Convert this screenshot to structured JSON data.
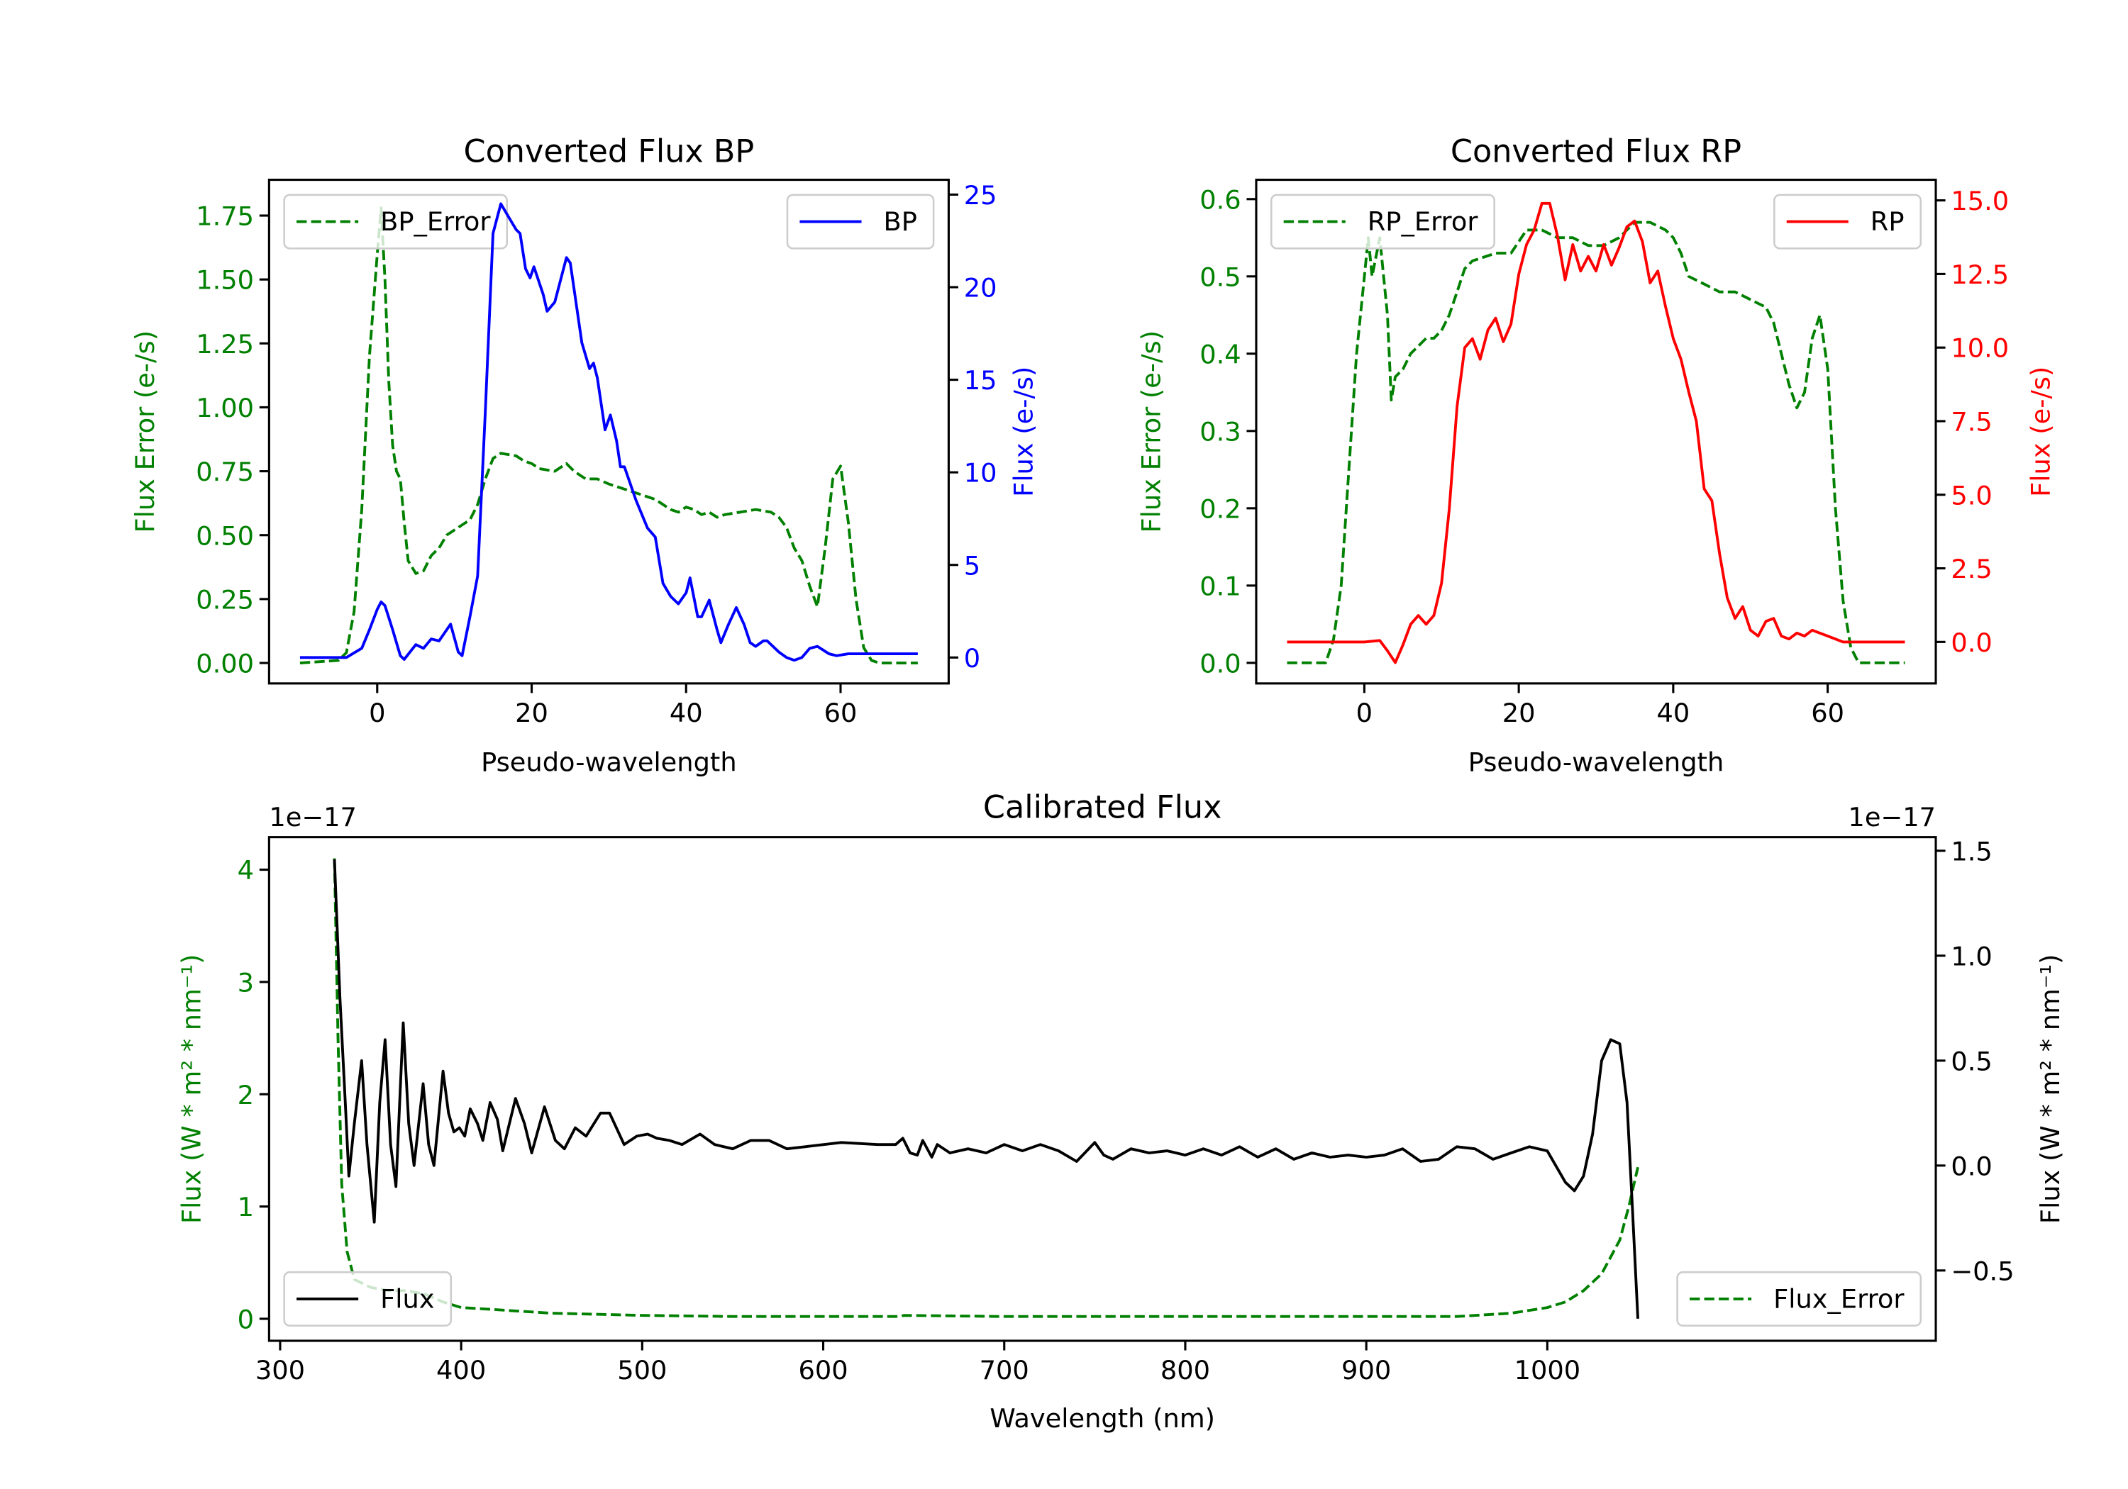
{
  "colors": {
    "error": "#008000",
    "bp": "#0000ff",
    "rp": "#ff0000",
    "flux": "#000000"
  },
  "chart_data": [
    {
      "id": "bp",
      "type": "line",
      "title": "Converted Flux BP",
      "xlabel": "Pseudo-wavelength",
      "xlim": [
        -14,
        74
      ],
      "xticks": [
        0,
        20,
        40,
        60
      ],
      "xtick_labels": [
        "0",
        "20",
        "40",
        "60"
      ],
      "left": {
        "label": "Flux Error (e-/s)",
        "color": "#008000",
        "ylim": [
          -0.08,
          1.89
        ],
        "ticks": [
          0,
          0.25,
          0.5,
          0.75,
          1.0,
          1.25,
          1.5,
          1.75
        ],
        "tick_labels": [
          "0.00",
          "0.25",
          "0.50",
          "0.75",
          "1.00",
          "1.25",
          "1.50",
          "1.75"
        ]
      },
      "right": {
        "label": "Flux (e-/s)",
        "color": "#0000ff",
        "ylim": [
          -1.4,
          25.8
        ],
        "ticks": [
          0,
          5,
          10,
          15,
          20,
          25
        ],
        "tick_labels": [
          "0",
          "5",
          "10",
          "15",
          "20",
          "25"
        ]
      },
      "series": [
        {
          "name": "BP_Error",
          "axis": "left",
          "color": "#008000",
          "style": "dashed",
          "legend": "upper left",
          "x": [
            -10,
            -5,
            -4,
            -3,
            -2,
            -1,
            0,
            0.5,
            1,
            1.5,
            2,
            2.5,
            3,
            3.5,
            4,
            5,
            6,
            7,
            8,
            9,
            10,
            11,
            12,
            13,
            14,
            15,
            16,
            18,
            19,
            20,
            21,
            23,
            24.5,
            25.5,
            27,
            28.5,
            30,
            32,
            34,
            36,
            37,
            38,
            39,
            40,
            41,
            42,
            43,
            44,
            45,
            47,
            49,
            51,
            52,
            53,
            54,
            55,
            56,
            57,
            58,
            59,
            60,
            61,
            62,
            63,
            64,
            65,
            70
          ],
          "y": [
            0,
            0.01,
            0.04,
            0.2,
            0.6,
            1.2,
            1.6,
            1.78,
            1.5,
            1.1,
            0.85,
            0.75,
            0.72,
            0.55,
            0.4,
            0.35,
            0.36,
            0.42,
            0.45,
            0.5,
            0.52,
            0.54,
            0.56,
            0.62,
            0.72,
            0.8,
            0.82,
            0.81,
            0.79,
            0.78,
            0.76,
            0.75,
            0.78,
            0.75,
            0.72,
            0.72,
            0.7,
            0.68,
            0.66,
            0.64,
            0.62,
            0.6,
            0.59,
            0.61,
            0.6,
            0.58,
            0.59,
            0.57,
            0.58,
            0.59,
            0.6,
            0.59,
            0.57,
            0.53,
            0.45,
            0.4,
            0.3,
            0.22,
            0.45,
            0.72,
            0.77,
            0.55,
            0.25,
            0.06,
            0.01,
            0,
            0
          ]
        },
        {
          "name": "BP",
          "axis": "right",
          "color": "#0000ff",
          "style": "solid",
          "legend": "upper right",
          "x": [
            -10,
            -4,
            -2,
            -1,
            0,
            0.5,
            1,
            2,
            3,
            3.5,
            5,
            6,
            7,
            8,
            9.5,
            10.5,
            11,
            12,
            13,
            14,
            15,
            16,
            17,
            18,
            18.5,
            19.2,
            19.8,
            20.3,
            21.5,
            22,
            23,
            24.5,
            25,
            26.5,
            27.5,
            28,
            28.5,
            29.5,
            30.2,
            31,
            31.5,
            32,
            33.5,
            35,
            36,
            37,
            38,
            39,
            40,
            40.5,
            41.5,
            42,
            43,
            44,
            44.5,
            45.5,
            46.5,
            47.5,
            48.3,
            49,
            50,
            50.5,
            52,
            53,
            54,
            55,
            56,
            57,
            58.5,
            59.5,
            61,
            70
          ],
          "y": [
            0,
            0,
            0.5,
            1.5,
            2.6,
            3.0,
            2.8,
            1.5,
            0.1,
            -0.1,
            0.7,
            0.5,
            1.0,
            0.9,
            1.8,
            0.3,
            0.1,
            2.2,
            4.4,
            13.3,
            22.9,
            24.5,
            23.8,
            23.1,
            22.9,
            21,
            20.5,
            21.1,
            19.6,
            18.7,
            19.2,
            21.6,
            21.3,
            17,
            15.6,
            15.9,
            15.1,
            12.3,
            13.1,
            11.7,
            10.3,
            10.3,
            8.5,
            7,
            6.5,
            4,
            3.3,
            2.9,
            3.5,
            4.3,
            2.2,
            2.2,
            3.1,
            1.5,
            0.8,
            1.8,
            2.7,
            1.8,
            0.8,
            0.6,
            0.9,
            0.9,
            0.3,
            0,
            -0.15,
            0,
            0.5,
            0.6,
            0.2,
            0.1,
            0.2,
            0.2
          ]
        }
      ]
    },
    {
      "id": "rp",
      "type": "line",
      "title": "Converted Flux RP",
      "xlabel": "Pseudo-wavelength",
      "xlim": [
        -14,
        74
      ],
      "xticks": [
        0,
        20,
        40,
        60
      ],
      "xtick_labels": [
        "0",
        "20",
        "40",
        "60"
      ],
      "left": {
        "label": "Flux Error (e-/s)",
        "color": "#008000",
        "ylim": [
          -0.0266,
          0.625
        ],
        "ticks": [
          0,
          0.1,
          0.2,
          0.3,
          0.4,
          0.5,
          0.6
        ],
        "tick_labels": [
          "0.0",
          "0.1",
          "0.2",
          "0.3",
          "0.4",
          "0.5",
          "0.6"
        ]
      },
      "right": {
        "label": "Flux (e-/s)",
        "color": "#ff0000",
        "ylim": [
          -1.41,
          15.7
        ],
        "ticks": [
          0,
          2.5,
          5,
          7.5,
          10,
          12.5,
          15
        ],
        "tick_labels": [
          "0.0",
          "2.5",
          "5.0",
          "7.5",
          "10.0",
          "12.5",
          "15.0"
        ]
      },
      "series": [
        {
          "name": "RP_Error",
          "axis": "left",
          "color": "#008000",
          "style": "dashed",
          "legend": "upper left",
          "x": [
            -10,
            -5,
            -4,
            -3,
            -2,
            -1,
            0,
            0.5,
            1,
            2,
            3,
            3.5,
            4,
            5,
            6,
            8,
            9,
            10,
            11,
            12,
            13,
            14,
            17,
            19,
            21,
            23,
            25,
            27,
            29,
            31,
            33,
            35,
            37,
            39,
            40,
            41,
            42,
            44,
            46,
            48,
            50,
            52,
            53,
            54,
            55,
            56,
            57,
            58,
            59,
            60,
            61,
            62,
            63,
            64,
            70
          ],
          "y": [
            0,
            0,
            0.03,
            0.1,
            0.25,
            0.4,
            0.5,
            0.55,
            0.5,
            0.55,
            0.45,
            0.34,
            0.37,
            0.38,
            0.4,
            0.42,
            0.42,
            0.43,
            0.45,
            0.48,
            0.51,
            0.52,
            0.53,
            0.53,
            0.56,
            0.56,
            0.55,
            0.55,
            0.54,
            0.54,
            0.55,
            0.57,
            0.57,
            0.56,
            0.55,
            0.53,
            0.5,
            0.49,
            0.48,
            0.48,
            0.47,
            0.46,
            0.44,
            0.4,
            0.36,
            0.33,
            0.35,
            0.42,
            0.45,
            0.38,
            0.2,
            0.08,
            0.02,
            0,
            0
          ]
        },
        {
          "name": "RP",
          "axis": "right",
          "color": "#ff0000",
          "style": "solid",
          "legend": "upper right",
          "x": [
            -10,
            0,
            2,
            3,
            4,
            5,
            6,
            7,
            8,
            9,
            10,
            11,
            12,
            13,
            14,
            15,
            16,
            17,
            18,
            19,
            20,
            21,
            22,
            23,
            24,
            25,
            26,
            27,
            28,
            29,
            30,
            31,
            32,
            33,
            34,
            35,
            36,
            37,
            38,
            39,
            40,
            41,
            42,
            43,
            44,
            45,
            46,
            47,
            48,
            49,
            50,
            51,
            52,
            53,
            54,
            55,
            56,
            57,
            58,
            60,
            62,
            70
          ],
          "y": [
            0,
            0,
            0.05,
            -0.3,
            -0.7,
            -0.1,
            0.6,
            0.9,
            0.6,
            0.9,
            2,
            4.5,
            8,
            10,
            10.3,
            9.6,
            10.6,
            11,
            10.2,
            10.8,
            12.5,
            13.5,
            14,
            14.9,
            14.9,
            13.8,
            12.3,
            13.5,
            12.6,
            13.1,
            12.6,
            13.5,
            12.8,
            13.4,
            14.1,
            14.3,
            13.6,
            12.2,
            12.6,
            11.4,
            10.3,
            9.6,
            8.5,
            7.5,
            5.2,
            4.8,
            3,
            1.5,
            0.8,
            1.2,
            0.4,
            0.2,
            0.7,
            0.8,
            0.2,
            0.1,
            0.3,
            0.2,
            0.4,
            0.2,
            0,
            0
          ]
        }
      ]
    },
    {
      "id": "cal",
      "type": "line",
      "title": "Calibrated Flux",
      "xlabel": "Wavelength (nm)",
      "xlim": [
        293.9,
        1214.6
      ],
      "xticks": [
        300,
        400,
        500,
        600,
        700,
        800,
        900,
        1000
      ],
      "xtick_labels": [
        "300",
        "400",
        "500",
        "600",
        "700",
        "800",
        "900",
        "1000"
      ],
      "left": {
        "label": "Flux (W * m² * nm⁻¹)",
        "color": "#008000",
        "ylim": [
          -0.196,
          4.29
        ],
        "offset_text": "1e−17",
        "ticks": [
          0,
          1,
          2,
          3,
          4
        ],
        "tick_labels": [
          "0",
          "1",
          "2",
          "3",
          "4"
        ]
      },
      "right": {
        "label": "Flux (W * m² * nm⁻¹)",
        "color": "#000000",
        "ylim": [
          -0.835,
          1.565
        ],
        "offset_text": "1e−17",
        "ticks": [
          -0.5,
          0,
          0.5,
          1.0,
          1.5
        ],
        "tick_labels": [
          "−0.5",
          "0.0",
          "0.5",
          "1.0",
          "1.5"
        ]
      },
      "series": [
        {
          "name": "Flux_Error",
          "axis": "left",
          "color": "#008000",
          "style": "dashed",
          "legend": "lower right",
          "x": [
            330,
            332,
            334,
            337,
            341,
            350,
            360,
            370,
            380,
            390,
            400,
            420,
            450,
            500,
            550,
            600,
            640,
            645,
            700,
            800,
            900,
            950,
            980,
            1000,
            1010,
            1020,
            1030,
            1040,
            1045,
            1050
          ],
          "y": [
            4.1,
            2.5,
            1.2,
            0.6,
            0.35,
            0.28,
            0.25,
            0.25,
            0.22,
            0.15,
            0.1,
            0.08,
            0.05,
            0.03,
            0.02,
            0.02,
            0.02,
            0.03,
            0.02,
            0.02,
            0.02,
            0.02,
            0.05,
            0.1,
            0.15,
            0.25,
            0.4,
            0.7,
            1.0,
            1.35
          ]
        },
        {
          "name": "Flux",
          "axis": "right",
          "color": "#000000",
          "style": "solid",
          "legend": "lower left",
          "x": [
            330,
            333,
            336,
            338,
            341,
            345,
            348,
            352,
            355,
            358,
            361,
            364,
            368,
            371,
            374,
            379,
            382,
            385,
            390,
            393,
            396,
            399,
            402,
            405,
            409,
            412,
            416,
            420,
            423,
            430,
            435,
            439,
            446,
            452,
            457,
            463,
            469,
            477,
            482,
            490,
            497,
            503,
            508,
            515,
            522,
            532,
            540,
            550,
            560,
            570,
            580,
            590,
            610,
            630,
            640,
            644,
            648,
            652,
            655,
            660,
            663,
            670,
            680,
            690,
            700,
            710,
            720,
            730,
            740,
            750,
            755,
            760,
            770,
            780,
            790,
            800,
            810,
            820,
            830,
            840,
            850,
            860,
            870,
            880,
            890,
            900,
            910,
            920,
            930,
            940,
            950,
            960,
            970,
            980,
            990,
            1000,
            1010,
            1015,
            1020,
            1025,
            1030,
            1035,
            1040,
            1044,
            1047,
            1050
          ],
          "y": [
            1.46,
            0.8,
            0.3,
            -0.05,
            0.2,
            0.5,
            0.1,
            -0.27,
            0.3,
            0.6,
            0.1,
            -0.1,
            0.68,
            0.2,
            0.0,
            0.39,
            0.1,
            0.0,
            0.45,
            0.25,
            0.16,
            0.18,
            0.14,
            0.27,
            0.2,
            0.12,
            0.3,
            0.22,
            0.07,
            0.32,
            0.2,
            0.06,
            0.28,
            0.12,
            0.08,
            0.18,
            0.14,
            0.25,
            0.25,
            0.1,
            0.14,
            0.15,
            0.13,
            0.12,
            0.1,
            0.15,
            0.1,
            0.08,
            0.12,
            0.12,
            0.08,
            0.09,
            0.11,
            0.1,
            0.1,
            0.13,
            0.06,
            0.05,
            0.12,
            0.04,
            0.1,
            0.06,
            0.08,
            0.06,
            0.1,
            0.07,
            0.1,
            0.07,
            0.02,
            0.11,
            0.05,
            0.03,
            0.08,
            0.06,
            0.07,
            0.05,
            0.08,
            0.05,
            0.09,
            0.04,
            0.08,
            0.03,
            0.06,
            0.04,
            0.05,
            0.04,
            0.05,
            0.08,
            0.02,
            0.03,
            0.09,
            0.08,
            0.03,
            0.06,
            0.09,
            0.07,
            -0.08,
            -0.12,
            -0.05,
            0.15,
            0.5,
            0.6,
            0.58,
            0.3,
            -0.2,
            -0.73
          ]
        }
      ]
    }
  ]
}
